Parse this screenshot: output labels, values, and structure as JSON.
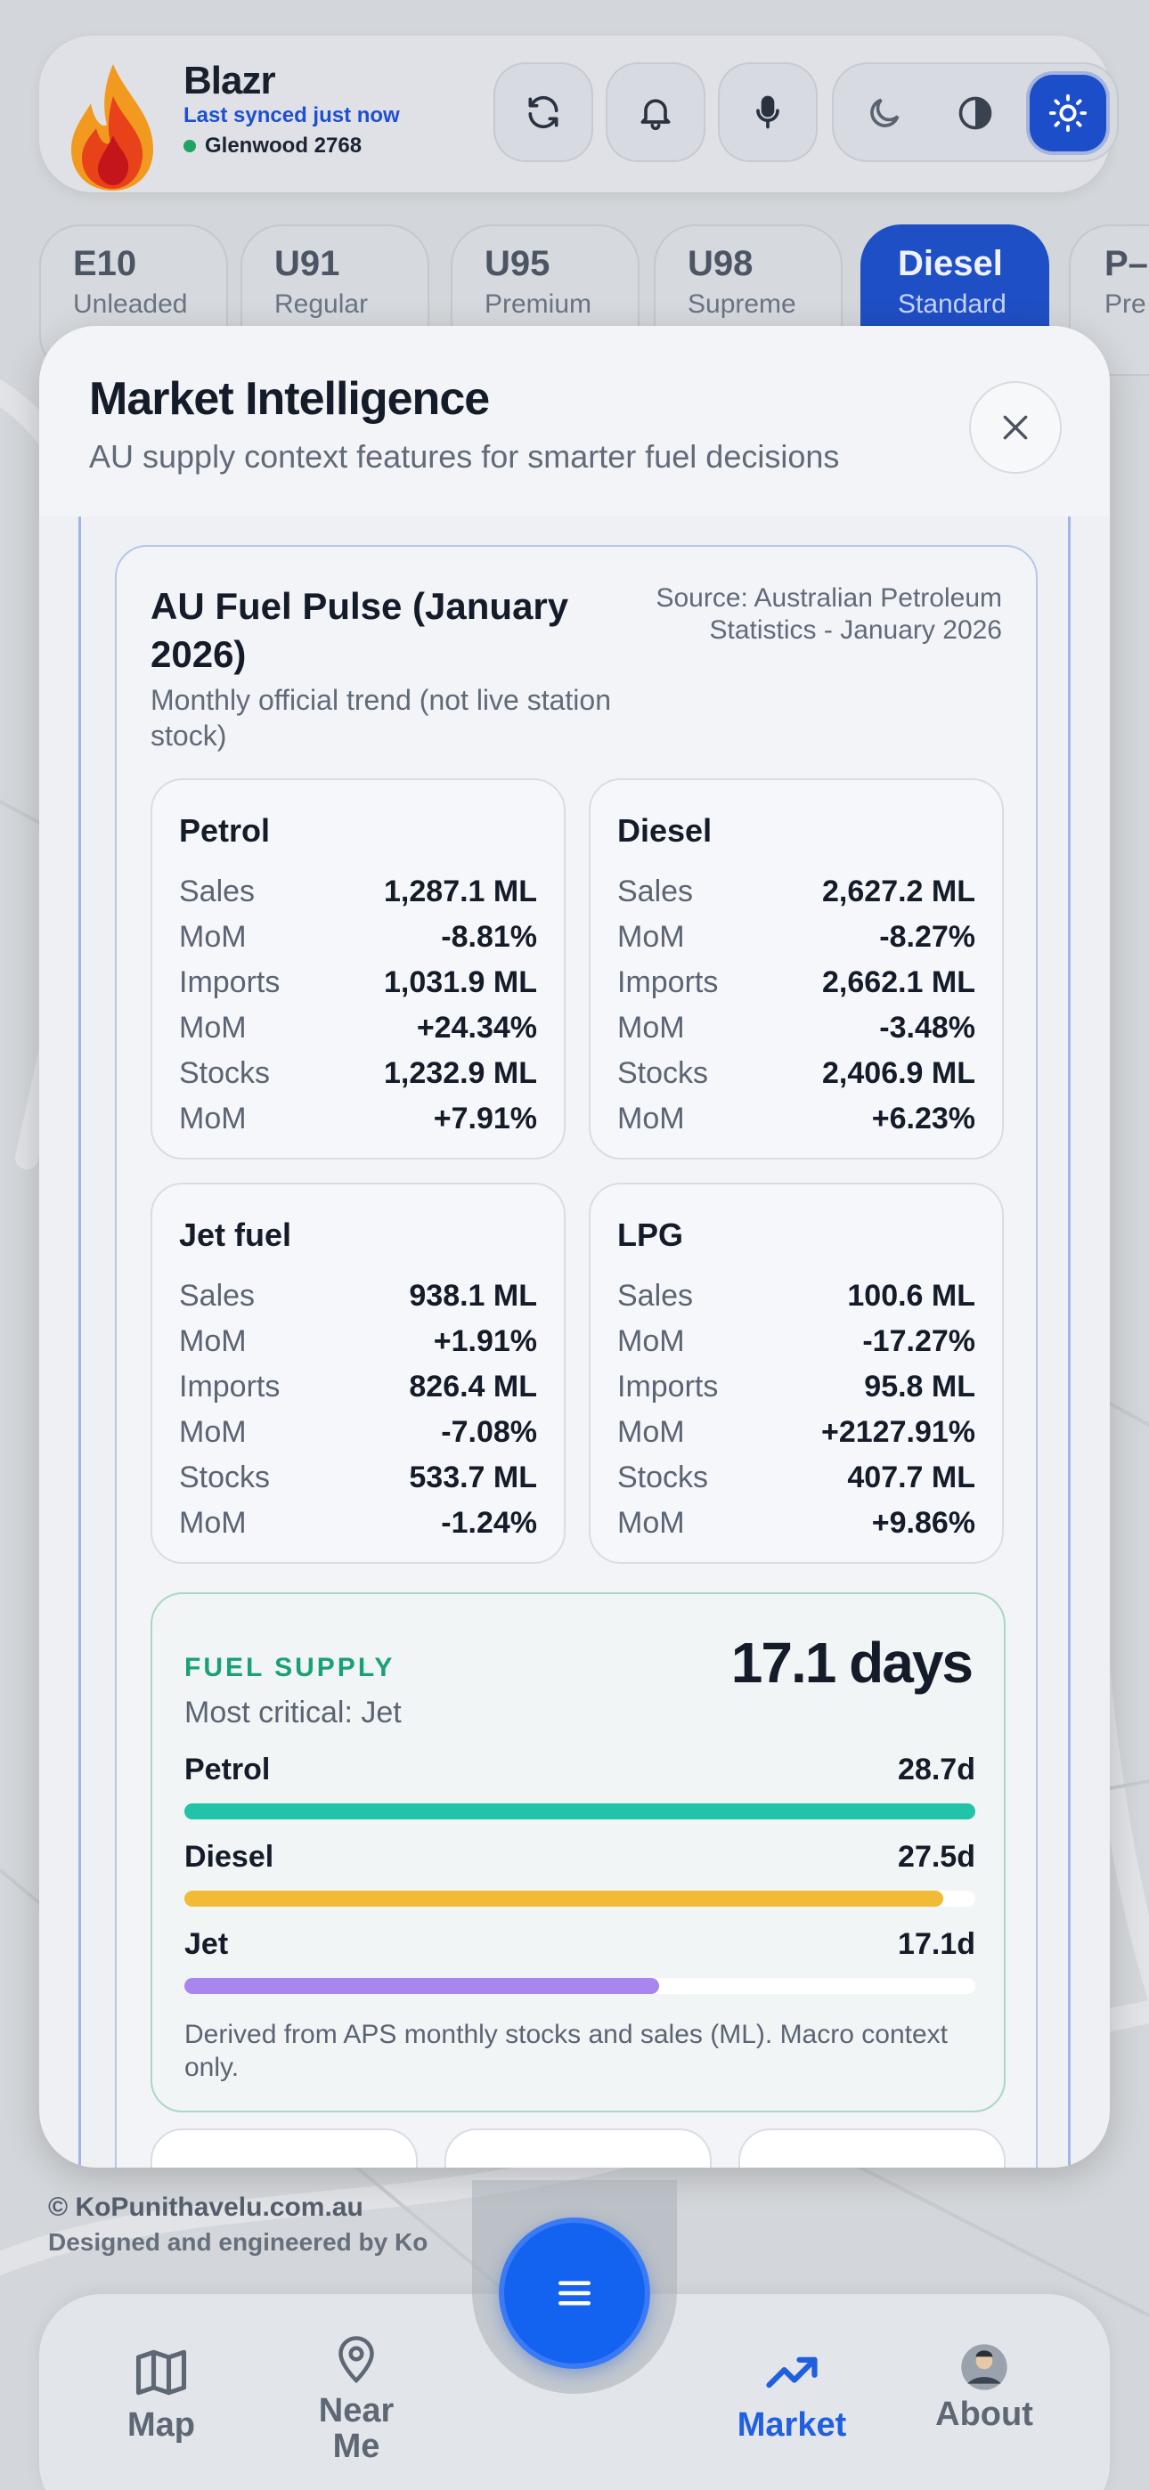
{
  "app": {
    "name": "Blazr",
    "sync_status": "Last synced just now",
    "location": "Glenwood 2768"
  },
  "colors": {
    "accent": "#1f4fc4",
    "supply_green": "#1aa173",
    "petrol_bar": "#22c3a6",
    "diesel_bar": "#f2bb36",
    "jet_bar": "#a885ef"
  },
  "fuel_tabs": [
    {
      "code": "E10",
      "label": "Unleaded"
    },
    {
      "code": "U91",
      "label": "Regular"
    },
    {
      "code": "U95",
      "label": "Premium"
    },
    {
      "code": "U98",
      "label": "Supreme"
    },
    {
      "code": "Diesel",
      "label": "Standard",
      "selected": true
    },
    {
      "code": "P–",
      "label": "Pre"
    }
  ],
  "modal": {
    "title": "Market Intelligence",
    "subtitle": "AU supply context features for smarter fuel decisions",
    "pulse": {
      "title": "AU Fuel Pulse (January 2026)",
      "subtitle": "Monthly official trend (not live station stock)",
      "source": "Source: Australian Petroleum Statistics - January 2026",
      "cards": [
        {
          "name": "Petrol",
          "rows": [
            {
              "label": "Sales",
              "value": "1,287.1 ML"
            },
            {
              "label": "MoM",
              "value": "-8.81%"
            },
            {
              "label": "Imports",
              "value": "1,031.9 ML"
            },
            {
              "label": "MoM",
              "value": "+24.34%"
            },
            {
              "label": "Stocks",
              "value": "1,232.9 ML"
            },
            {
              "label": "MoM",
              "value": "+7.91%"
            }
          ]
        },
        {
          "name": "Diesel",
          "rows": [
            {
              "label": "Sales",
              "value": "2,627.2 ML"
            },
            {
              "label": "MoM",
              "value": "-8.27%"
            },
            {
              "label": "Imports",
              "value": "2,662.1 ML"
            },
            {
              "label": "MoM",
              "value": "-3.48%"
            },
            {
              "label": "Stocks",
              "value": "2,406.9 ML"
            },
            {
              "label": "MoM",
              "value": "+6.23%"
            }
          ]
        },
        {
          "name": "Jet fuel",
          "rows": [
            {
              "label": "Sales",
              "value": "938.1 ML"
            },
            {
              "label": "MoM",
              "value": "+1.91%"
            },
            {
              "label": "Imports",
              "value": "826.4 ML"
            },
            {
              "label": "MoM",
              "value": "-7.08%"
            },
            {
              "label": "Stocks",
              "value": "533.7 ML"
            },
            {
              "label": "MoM",
              "value": "-1.24%"
            }
          ]
        },
        {
          "name": "LPG",
          "rows": [
            {
              "label": "Sales",
              "value": "100.6 ML"
            },
            {
              "label": "MoM",
              "value": "-17.27%"
            },
            {
              "label": "Imports",
              "value": "95.8 ML"
            },
            {
              "label": "MoM",
              "value": "+2127.91%"
            },
            {
              "label": "Stocks",
              "value": "407.7 ML"
            },
            {
              "label": "MoM",
              "value": "+9.86%"
            }
          ]
        }
      ]
    },
    "supply": {
      "label": "FUEL SUPPLY",
      "days": "17.1 days",
      "critical": "Most critical: Jet",
      "bars": [
        {
          "name": "Petrol",
          "value_text": "28.7d",
          "days": 28.7,
          "fill_fraction": 1.0
        },
        {
          "name": "Diesel",
          "value_text": "27.5d",
          "days": 27.5,
          "fill_fraction": 0.96
        },
        {
          "name": "Jet",
          "value_text": "17.1d",
          "days": 17.1,
          "fill_fraction": 0.6
        }
      ],
      "note": "Derived from APS monthly stocks and sales (ML). Macro context only."
    }
  },
  "footer": {
    "copyright": "© KoPunithavelu.com.au",
    "credit": "Designed and engineered by Ko"
  },
  "nav": {
    "items": [
      {
        "label": "Map",
        "icon": "map-icon"
      },
      {
        "label": "Near Me",
        "icon": "location-pin-icon"
      },
      {
        "label": "Market",
        "icon": "trending-up-icon",
        "active": true
      },
      {
        "label": "About",
        "icon": "avatar-icon"
      }
    ],
    "fab_icon": "menu-icon"
  }
}
